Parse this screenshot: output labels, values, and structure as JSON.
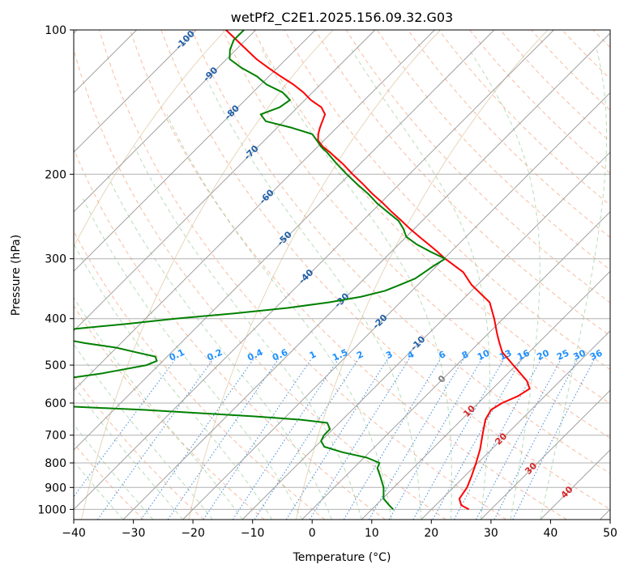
{
  "chart_data": {
    "type": "line",
    "subtype": "skew-t log-p diagram",
    "title": "wetPf2_C2E1.2025.156.09.32.G03",
    "xlabel": "Temperature (°C)",
    "ylabel": "Pressure (hPa)",
    "xlim": [
      -40,
      50
    ],
    "ylim": [
      1050,
      100
    ],
    "y_scale": "log",
    "grid": true,
    "x_ticks": [
      -40,
      -30,
      -20,
      -10,
      0,
      10,
      20,
      30,
      40,
      50
    ],
    "y_ticks": [
      100,
      200,
      300,
      400,
      500,
      600,
      700,
      800,
      900,
      1000
    ],
    "x_tick_labels": [
      "−40",
      "−30",
      "−20",
      "−10",
      "0",
      "10",
      "20",
      "30",
      "40",
      "50"
    ],
    "y_tick_labels": [
      "100",
      "200",
      "300",
      "400",
      "500",
      "600",
      "700",
      "800",
      "900",
      "1000"
    ],
    "isotherm_labels": [
      "-100",
      "-90",
      "-80",
      "-70",
      "-60",
      "-50",
      "-40",
      "-30",
      "-20",
      "-10",
      "0",
      "10",
      "20",
      "30",
      "40"
    ],
    "mixing_ratio_labels": [
      "0.1",
      "0.2",
      "0.4",
      "0.6",
      "1",
      "1.5",
      "2",
      "3",
      "4",
      "6",
      "8",
      "10",
      "13",
      "16",
      "20",
      "25",
      "30",
      "36"
    ],
    "series": [
      {
        "role": "temperature",
        "color": "#ff0000",
        "p": [
          1000,
          980,
          950,
          900,
          850,
          800,
          750,
          700,
          650,
          620,
          600,
          580,
          560,
          540,
          500,
          470,
          450,
          430,
          400,
          370,
          340,
          320,
          300,
          290,
          280,
          270,
          260,
          250,
          240,
          230,
          220,
          210,
          200,
          190,
          180,
          175,
          170,
          165,
          160,
          155,
          150,
          145,
          140,
          135,
          130,
          125,
          120,
          115,
          110,
          105,
          100
        ],
        "t": [
          26.3,
          24.3,
          22.9,
          22.3,
          21.1,
          19.7,
          18.1,
          16.1,
          14.0,
          13.3,
          14.0,
          15.5,
          16.2,
          14.5,
          9.5,
          5.5,
          3.5,
          1.5,
          -1.5,
          -5.0,
          -11.0,
          -14.5,
          -19.8,
          -22.3,
          -25.0,
          -27.8,
          -30.7,
          -33.5,
          -36.5,
          -39.5,
          -42.8,
          -46.0,
          -49.5,
          -53.0,
          -57.0,
          -59.2,
          -61.0,
          -62.0,
          -62.8,
          -63.5,
          -64.2,
          -66.0,
          -69.0,
          -71.5,
          -74.5,
          -78.0,
          -81.5,
          -85.0,
          -88.2,
          -91.5,
          -95.0
        ]
      },
      {
        "role": "dewpoint",
        "color": "#008000",
        "p": [
          1000,
          980,
          950,
          900,
          850,
          820,
          800,
          780,
          760,
          740,
          720,
          700,
          680,
          660,
          650,
          640,
          620,
          610,
          600,
          590,
          580,
          570,
          565,
          560,
          550,
          540,
          530,
          520,
          510,
          500,
          490,
          480,
          470,
          460,
          450,
          440,
          430,
          420,
          410,
          400,
          390,
          380,
          370,
          360,
          350,
          340,
          330,
          320,
          310,
          300,
          290,
          280,
          270,
          260,
          250,
          240,
          230,
          220,
          210,
          200,
          190,
          180,
          175,
          170,
          165,
          160,
          155,
          150,
          145,
          140,
          135,
          130,
          125,
          120,
          115,
          110,
          105,
          100
        ],
        "td": [
          13.6,
          12.2,
          10.2,
          8.3,
          5.7,
          4.0,
          3.5,
          0.5,
          -4.5,
          -8.5,
          -10.0,
          -10.5,
          -10.5,
          -12.0,
          -17.0,
          -25.0,
          -45.0,
          -58.0,
          -66.0,
          -70.0,
          -72.0,
          -72.0,
          -71.5,
          -70.0,
          -68.0,
          -66.0,
          -62.0,
          -58.0,
          -55.0,
          -52.0,
          -51.0,
          -52.0,
          -56.0,
          -60.0,
          -66.0,
          -71.0,
          -72.5,
          -70.0,
          -62.0,
          -55.0,
          -46.0,
          -38.0,
          -32.0,
          -27.5,
          -24.5,
          -23.0,
          -21.5,
          -21.0,
          -20.5,
          -19.8,
          -23.5,
          -27.0,
          -30.0,
          -31.8,
          -34.0,
          -37.2,
          -40.5,
          -43.5,
          -47.0,
          -50.5,
          -54.0,
          -57.5,
          -59.5,
          -61.2,
          -63.0,
          -67.5,
          -73.0,
          -75.0,
          -73.0,
          -72.5,
          -75.0,
          -79.0,
          -82.0,
          -86.0,
          -89.5,
          -91.0,
          -92.0,
          -92.0
        ]
      }
    ]
  }
}
